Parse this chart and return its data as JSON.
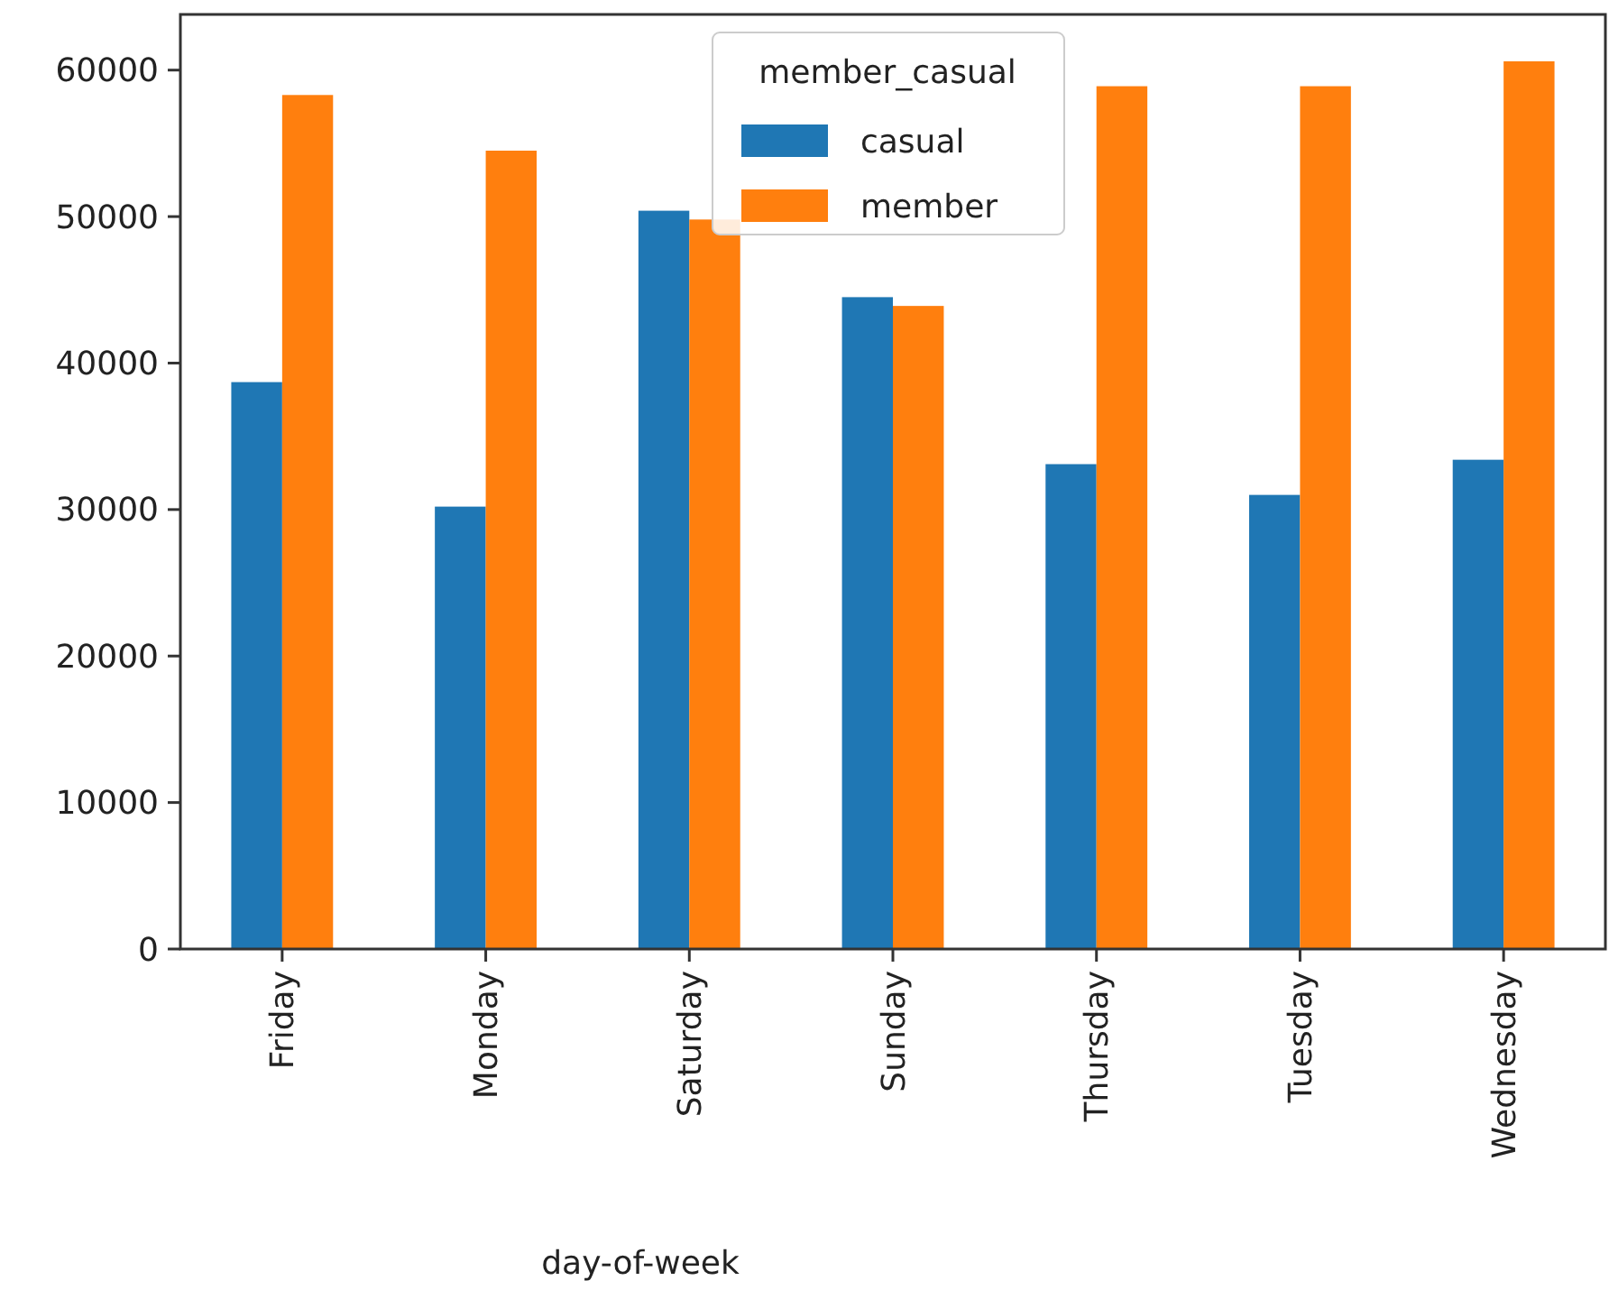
{
  "chart_data": {
    "type": "bar",
    "xlabel": "day-of-week",
    "legend_title": "member_casual",
    "categories": [
      "Friday",
      "Monday",
      "Saturday",
      "Sunday",
      "Thursday",
      "Tuesday",
      "Wednesday"
    ],
    "series": [
      {
        "name": "casual",
        "color": "#1f77b4",
        "values": [
          38700,
          30200,
          50400,
          44500,
          33100,
          31000,
          33400
        ]
      },
      {
        "name": "member",
        "color": "#ff7f0e",
        "values": [
          58300,
          54500,
          49800,
          43900,
          58900,
          58900,
          60600
        ]
      }
    ],
    "ylim": [
      0,
      63800
    ],
    "yticks": [
      0,
      10000,
      20000,
      30000,
      40000,
      50000,
      60000
    ],
    "grid": false,
    "legend": "top"
  }
}
